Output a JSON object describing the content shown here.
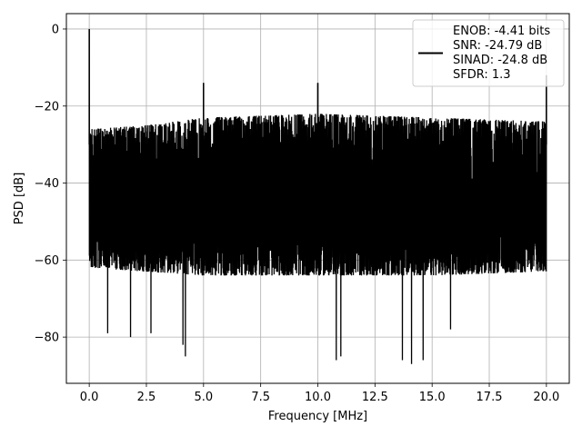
{
  "chart_data": {
    "type": "line",
    "xlabel": "Frequency [MHz]",
    "ylabel": "PSD [dB]",
    "xlim": [
      -1.0,
      21.0
    ],
    "ylim": [
      -92,
      4
    ],
    "xticks": [
      0.0,
      2.5,
      5.0,
      7.5,
      10.0,
      12.5,
      15.0,
      17.5,
      20.0
    ],
    "xtick_labels": [
      "0.0",
      "2.5",
      "5.0",
      "7.5",
      "10.0",
      "12.5",
      "15.0",
      "17.5",
      "20.0"
    ],
    "yticks": [
      0,
      -20,
      -40,
      -60,
      -80
    ],
    "ytick_labels": [
      "0",
      "−20",
      "−40",
      "−60",
      "−80"
    ],
    "grid": true,
    "legend_position": "top-right",
    "series": [
      {
        "name": "ENOB: -4.41 bits\nSNR: -24.79 dB\nSINAD: -24.8 dB\nSFDR: 1.3",
        "color": "#000000",
        "x_range": [
          0.0,
          20.0
        ],
        "peak_x": [
          0.0,
          5.0,
          10.0,
          20.0
        ],
        "peak_y": [
          0,
          -14,
          -14,
          -12
        ],
        "noise_upper_envelope": {
          "x": [
            0.0,
            2.5,
            5.0,
            10.0,
            15.0,
            20.0
          ],
          "y": [
            -26,
            -25,
            -23,
            -22,
            -23,
            -24
          ]
        },
        "noise_lower_envelope": {
          "x": [
            0.0,
            2.5,
            5.0,
            10.0,
            15.0,
            20.0
          ],
          "y": [
            -62,
            -63,
            -64,
            -64,
            -64,
            -63
          ]
        },
        "deep_notch_x": [
          0.8,
          1.8,
          2.7,
          4.1,
          4.2,
          10.8,
          11.0,
          13.7,
          14.1,
          14.6,
          15.8
        ],
        "deep_notch_y": [
          -79,
          -80,
          -79,
          -82,
          -85,
          -86,
          -85,
          -86,
          -87,
          -86,
          -78
        ]
      }
    ],
    "legend_entries": [
      "ENOB: -4.41 bits",
      "SNR: -24.79 dB",
      "SINAD: -24.8 dB",
      "SFDR: 1.3"
    ]
  }
}
